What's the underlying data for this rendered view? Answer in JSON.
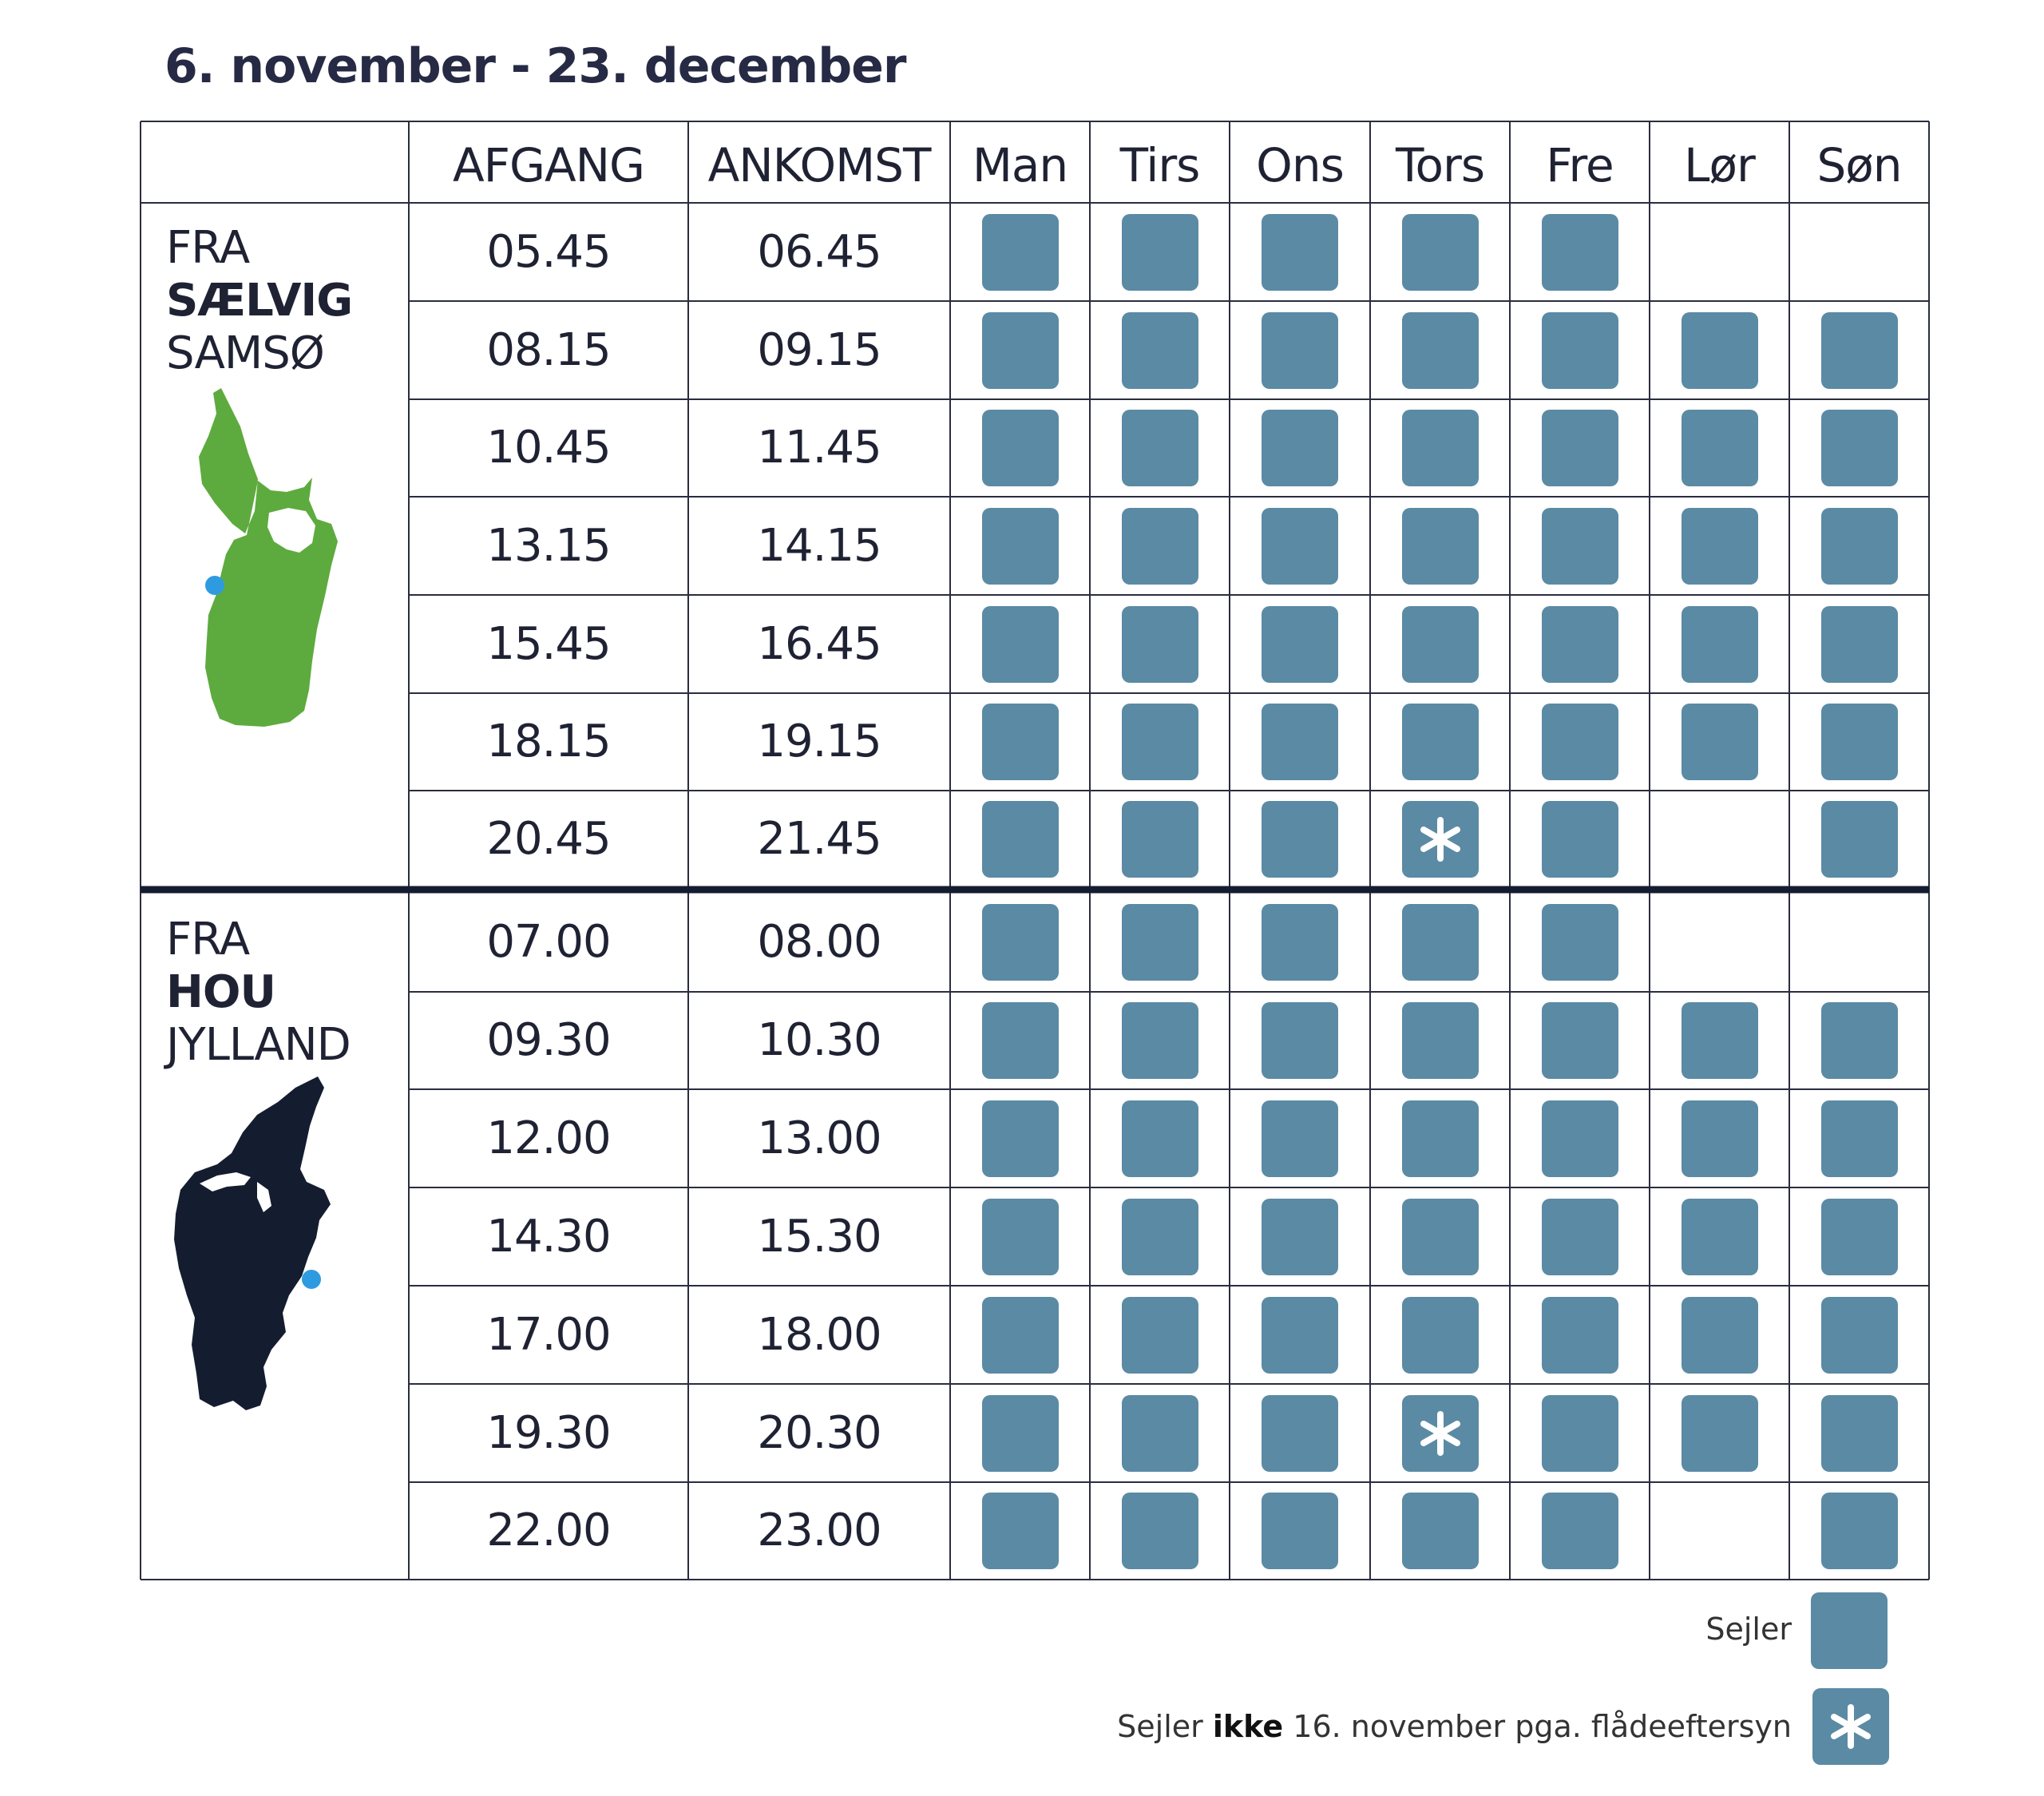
{
  "title": "6. november - 23. december",
  "columns": {
    "afgang": "AFGANG",
    "ankomst": "ANKOMST",
    "days": [
      "Man",
      "Tirs",
      "Ons",
      "Tors",
      "Fre",
      "Lør",
      "Søn"
    ]
  },
  "sections": [
    {
      "prefix": "FRA",
      "place": "SÆLVIG",
      "region": "SAMSØ",
      "map_icon": "samso-map-icon",
      "map_color": "#5dab3e",
      "rows": [
        {
          "afgang": "05.45",
          "ankomst": "06.45",
          "days": [
            1,
            1,
            1,
            1,
            1,
            0,
            0
          ]
        },
        {
          "afgang": "08.15",
          "ankomst": "09.15",
          "days": [
            1,
            1,
            1,
            1,
            1,
            1,
            1
          ]
        },
        {
          "afgang": "10.45",
          "ankomst": "11.45",
          "days": [
            1,
            1,
            1,
            1,
            1,
            1,
            1
          ]
        },
        {
          "afgang": "13.15",
          "ankomst": "14.15",
          "days": [
            1,
            1,
            1,
            1,
            1,
            1,
            1
          ]
        },
        {
          "afgang": "15.45",
          "ankomst": "16.45",
          "days": [
            1,
            1,
            1,
            1,
            1,
            1,
            1
          ]
        },
        {
          "afgang": "18.15",
          "ankomst": "19.15",
          "days": [
            1,
            1,
            1,
            1,
            1,
            1,
            1
          ]
        },
        {
          "afgang": "20.45",
          "ankomst": "21.45",
          "days": [
            1,
            1,
            1,
            2,
            1,
            0,
            1
          ]
        }
      ]
    },
    {
      "prefix": "FRA",
      "place": "HOU",
      "region": "JYLLAND",
      "map_icon": "jylland-map-icon",
      "map_color": "#141d30",
      "rows": [
        {
          "afgang": "07.00",
          "ankomst": "08.00",
          "days": [
            1,
            1,
            1,
            1,
            1,
            0,
            0
          ]
        },
        {
          "afgang": "09.30",
          "ankomst": "10.30",
          "days": [
            1,
            1,
            1,
            1,
            1,
            1,
            1
          ]
        },
        {
          "afgang": "12.00",
          "ankomst": "13.00",
          "days": [
            1,
            1,
            1,
            1,
            1,
            1,
            1
          ]
        },
        {
          "afgang": "14.30",
          "ankomst": "15.30",
          "days": [
            1,
            1,
            1,
            1,
            1,
            1,
            1
          ]
        },
        {
          "afgang": "17.00",
          "ankomst": "18.00",
          "days": [
            1,
            1,
            1,
            1,
            1,
            1,
            1
          ]
        },
        {
          "afgang": "19.30",
          "ankomst": "20.30",
          "days": [
            1,
            1,
            1,
            2,
            1,
            1,
            1
          ]
        },
        {
          "afgang": "22.00",
          "ankomst": "23.00",
          "days": [
            1,
            1,
            1,
            1,
            1,
            0,
            1
          ]
        }
      ]
    }
  ],
  "legend": {
    "sails_label": "Sejler",
    "not_sails_pre": "Sejler",
    "not_sails_bold": "ikke",
    "not_sails_post": "16. november pga. flådeeftersyn"
  },
  "colors": {
    "cell": "#5b8aa4",
    "grid_line": "#2a2d3e",
    "divider": "#141d30",
    "port_dot": "#2e9be0"
  }
}
